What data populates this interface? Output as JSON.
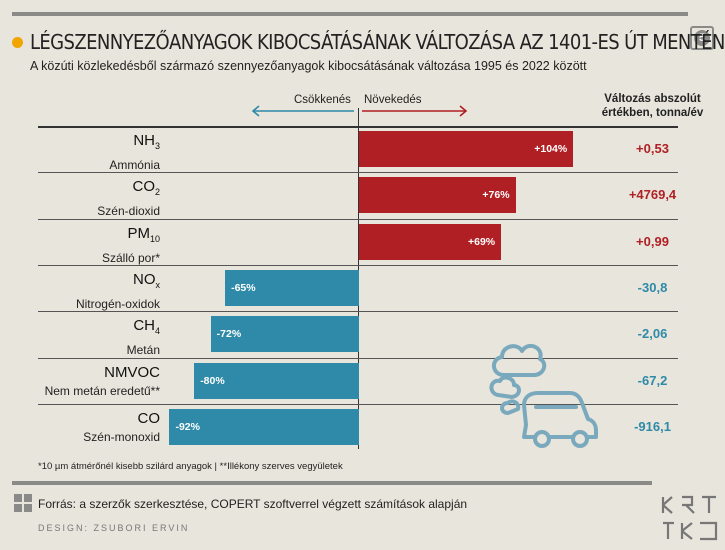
{
  "header": {
    "title": "LÉGSZENNYEZŐANYAGOK KIBOCSÁTÁSÁNAK VÁLTOZÁSA AZ 1401-ES ÚT MENTÉN",
    "subtitle": "A közúti közlekedésből származó szennyezőanyagok  kibocsátásának változása 1995 és 2022 között",
    "badge": "5"
  },
  "labels": {
    "decrease": "Csökkenés",
    "increase": "Növekedés",
    "abs_header_line1": "Változás abszolút",
    "abs_header_line2": "értékben, tonna/év"
  },
  "chart_data": {
    "type": "bar",
    "orientation": "horizontal",
    "xlim": [
      -100,
      110
    ],
    "unit": "%",
    "categories": [
      {
        "formula": "NH",
        "sub": "3",
        "name": "Ammónia",
        "value": 104,
        "label": "+104%",
        "abs": "+0,53"
      },
      {
        "formula": "CO",
        "sub": "2",
        "name": "Szén-dioxid",
        "value": 76,
        "label": "+76%",
        "abs": "+4769,4"
      },
      {
        "formula": "PM",
        "sub": "10",
        "name": "Szálló por*",
        "value": 69,
        "label": "+69%",
        "abs": "+0,99"
      },
      {
        "formula": "NO",
        "sub": "x",
        "name": "Nitrogén-oxidok",
        "value": -65,
        "label": "-65%",
        "abs": "-30,8"
      },
      {
        "formula": "CH",
        "sub": "4",
        "name": "Metán",
        "value": -72,
        "label": "-72%",
        "abs": "-2,06"
      },
      {
        "formula": "NMVOC",
        "sub": "",
        "name": "Nem metán eredetű**",
        "value": -80,
        "label": "-80%",
        "abs": "-67,2"
      },
      {
        "formula": "CO",
        "sub": "",
        "name": "Szén-monoxid",
        "value": -92,
        "label": "-92%",
        "abs": "-916,1"
      }
    ],
    "colors": {
      "increase": "#b01f23",
      "decrease": "#2e8aa8"
    }
  },
  "footer": {
    "footnote": "*10 µm átmérőnél kisebb szilárd anyagok | **Illékony szerves vegyületek",
    "source": "Forrás: a szerzők szerkesztése, COPERT szoftverrel végzett számítások alapján",
    "design": "DESIGN: ZSUBORI ERVIN"
  },
  "icons": [
    "car-exhaust-icon",
    "grid-source-icon",
    "krtk-logo"
  ]
}
